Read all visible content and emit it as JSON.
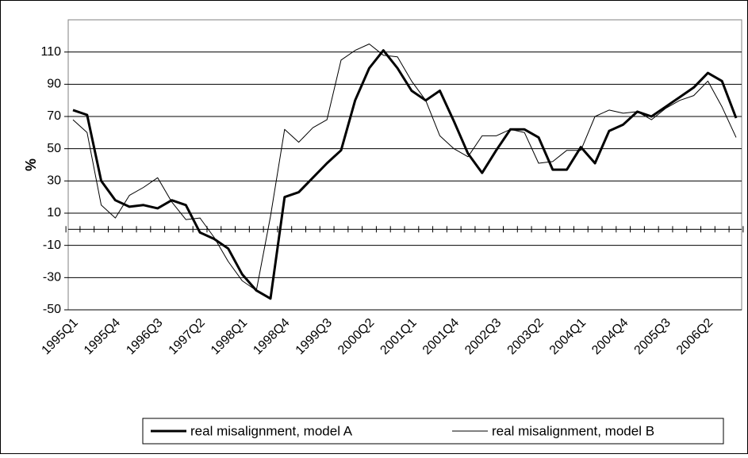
{
  "chart_data": {
    "type": "line",
    "y_label": "%",
    "categories": [
      "1995Q1",
      null,
      null,
      "1995Q4",
      null,
      null,
      "1996Q3",
      null,
      null,
      "1997Q2",
      null,
      null,
      "1998Q1",
      null,
      null,
      "1998Q4",
      null,
      null,
      "1999Q3",
      null,
      null,
      "2000Q2",
      null,
      null,
      "2001Q1",
      null,
      null,
      "2001Q4",
      null,
      null,
      "2002Q3",
      null,
      null,
      "2003Q2",
      null,
      null,
      "2004Q1",
      null,
      null,
      "2004Q4",
      null,
      null,
      "2005Q3",
      null,
      null,
      "2006Q2",
      null,
      null
    ],
    "series": [
      {
        "name": "real misalignment, model A",
        "color": "#000000",
        "width": 3,
        "values": [
          74,
          71,
          30,
          18,
          14,
          15,
          13,
          18,
          15,
          -2,
          -6,
          -12,
          -28,
          -38,
          -43,
          20,
          23,
          32,
          41,
          49,
          80,
          100,
          111,
          100,
          86,
          80,
          86,
          67,
          47,
          35,
          49,
          62,
          62,
          57,
          37,
          37,
          51,
          41,
          61,
          65,
          73,
          70,
          76,
          82,
          88,
          97,
          92,
          69
        ]
      },
      {
        "name": "real misalignment, model B",
        "color": "#000000",
        "width": 1,
        "values": [
          68,
          60,
          15,
          7,
          21,
          26,
          32,
          17,
          6,
          7,
          -5,
          -20,
          -32,
          -38,
          8,
          62,
          54,
          63,
          68,
          105,
          111,
          115,
          108,
          107,
          92,
          80,
          58,
          50,
          45,
          58,
          58,
          62,
          60,
          41,
          42,
          49,
          49,
          70,
          74,
          72,
          73,
          68,
          75,
          80,
          83,
          92,
          76,
          57
        ]
      }
    ],
    "ylim": [
      -50,
      130
    ],
    "yticks": [
      -50,
      -30,
      -10,
      10,
      30,
      50,
      70,
      90,
      110
    ],
    "grid": true,
    "legend": "bottom"
  }
}
